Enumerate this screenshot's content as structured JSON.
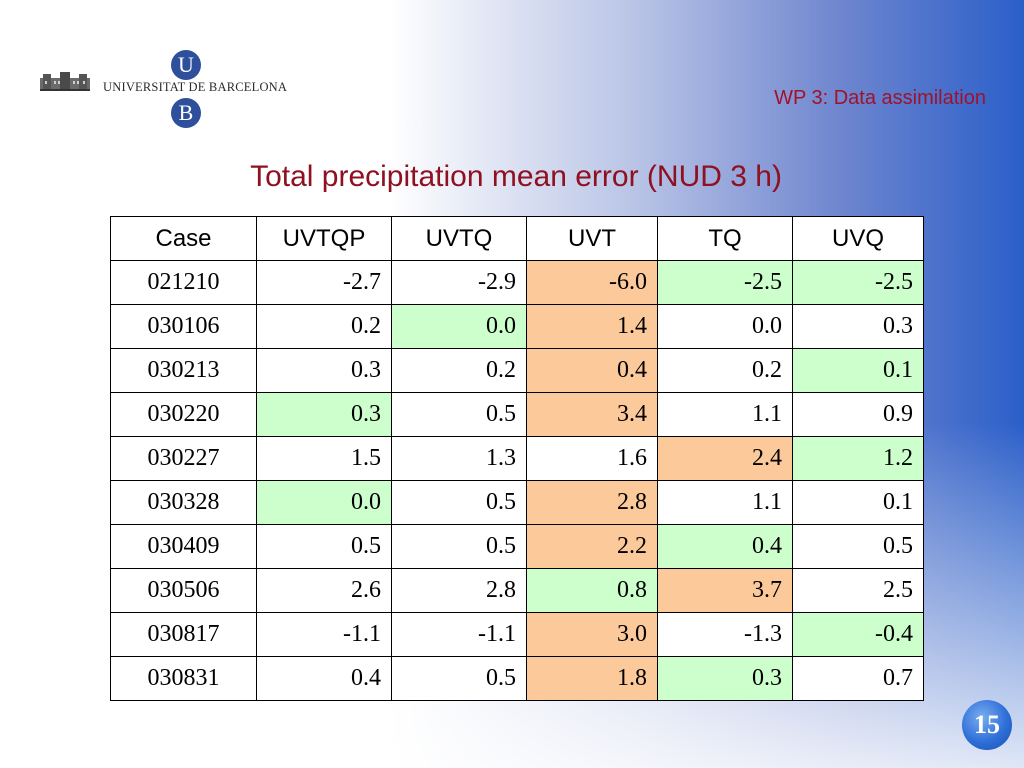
{
  "header": {
    "university_name": "UNIVERSITAT DE BARCELONA",
    "seal_top": "U",
    "seal_bottom": "B",
    "wp_label": "WP  3: Data assimilation"
  },
  "title": "Total precipitation mean error (NUD 3 h)",
  "table": {
    "headers": [
      "Case",
      "UVTQP",
      "UVTQ",
      "UVT",
      "TQ",
      "UVQ"
    ],
    "rows": [
      {
        "case": "021210",
        "values": [
          "-2.7",
          "-2.9",
          "-6.0",
          "-2.5",
          "-2.5"
        ],
        "highlight": [
          "",
          "",
          "orange",
          "green",
          "green"
        ]
      },
      {
        "case": "030106",
        "values": [
          "0.2",
          "0.0",
          "1.4",
          "0.0",
          "0.3"
        ],
        "highlight": [
          "",
          "green",
          "orange",
          "",
          ""
        ]
      },
      {
        "case": "030213",
        "values": [
          "0.3",
          "0.2",
          "0.4",
          "0.2",
          "0.1"
        ],
        "highlight": [
          "",
          "",
          "orange",
          "",
          "green"
        ]
      },
      {
        "case": "030220",
        "values": [
          "0.3",
          "0.5",
          "3.4",
          "1.1",
          "0.9"
        ],
        "highlight": [
          "green",
          "",
          "orange",
          "",
          ""
        ]
      },
      {
        "case": "030227",
        "values": [
          "1.5",
          "1.3",
          "1.6",
          "2.4",
          "1.2"
        ],
        "highlight": [
          "",
          "",
          "",
          "orange",
          "green"
        ]
      },
      {
        "case": "030328",
        "values": [
          "0.0",
          "0.5",
          "2.8",
          "1.1",
          "0.1"
        ],
        "highlight": [
          "green",
          "",
          "orange",
          "",
          ""
        ]
      },
      {
        "case": "030409",
        "values": [
          "0.5",
          "0.5",
          "2.2",
          "0.4",
          "0.5"
        ],
        "highlight": [
          "",
          "",
          "orange",
          "green",
          ""
        ]
      },
      {
        "case": "030506",
        "values": [
          "2.6",
          "2.8",
          "0.8",
          "3.7",
          "2.5"
        ],
        "highlight": [
          "",
          "",
          "green",
          "orange",
          ""
        ]
      },
      {
        "case": "030817",
        "values": [
          "-1.1",
          "-1.1",
          "3.0",
          "-1.3",
          "-0.4"
        ],
        "highlight": [
          "",
          "",
          "orange",
          "",
          "green"
        ]
      },
      {
        "case": "030831",
        "values": [
          "0.4",
          "0.5",
          "1.8",
          "0.3",
          "0.7"
        ],
        "highlight": [
          "",
          "",
          "orange",
          "green",
          ""
        ]
      }
    ]
  },
  "colors": {
    "highlight_orange": "#fcc99b",
    "highlight_green": "#ccffcc",
    "title_color": "#8e1021"
  },
  "page_number": "15"
}
